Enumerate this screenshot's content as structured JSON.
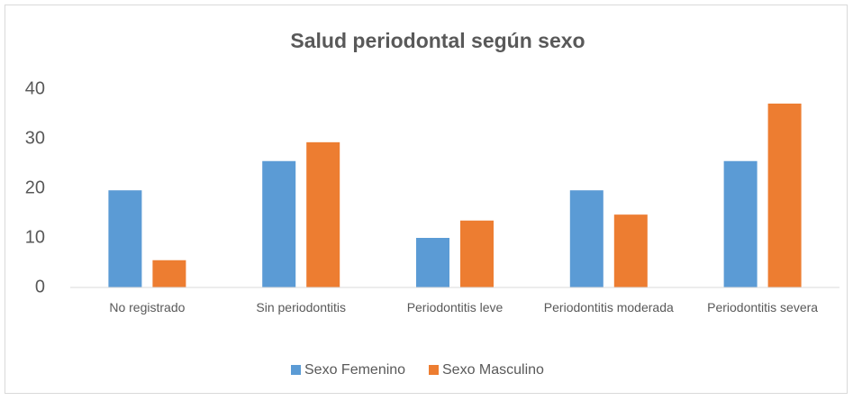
{
  "chart_data": {
    "type": "bar",
    "title": "Salud periodontal según sexo",
    "categories": [
      "No registrado",
      "Sin periodontitis",
      "Periodontitis leve",
      "Periodontitis moderada",
      "Periodontitis severa"
    ],
    "series": [
      {
        "name": "Sexo Femenino",
        "color": "#5b9bd5",
        "values": [
          19.6,
          25.5,
          10,
          19.6,
          25.5
        ]
      },
      {
        "name": "Sexo Masculino",
        "color": "#ed7d31",
        "values": [
          5.5,
          29.3,
          13.5,
          14.7,
          37.1
        ]
      }
    ],
    "ylim": [
      0,
      40
    ],
    "yticks": [
      0,
      10,
      20,
      30,
      40
    ],
    "grid": false,
    "legend": "bottom"
  }
}
